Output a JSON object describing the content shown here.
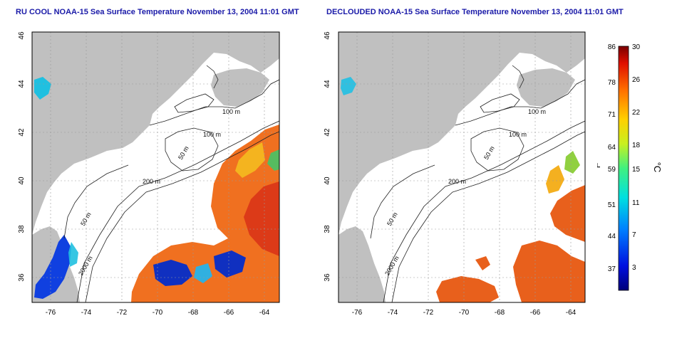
{
  "left_panel": {
    "title": "RU COOL NOAA-15 Sea Surface Temperature November 13, 2004 11:01 GMT",
    "x_ticks": [
      "-76",
      "-74",
      "-72",
      "-70",
      "-68",
      "-66",
      "-64"
    ],
    "y_ticks": [
      "46",
      "44",
      "42",
      "40",
      "38",
      "36"
    ],
    "contour_labels": [
      "100 m",
      "100 m",
      "50 m",
      "200 m",
      "50 m",
      "2000 m"
    ]
  },
  "right_panel": {
    "title": "DECLOUDED NOAA-15 Sea Surface Temperature November 13, 2004 11:01 GMT",
    "x_ticks": [
      "-76",
      "-74",
      "-72",
      "-70",
      "-68",
      "-66",
      "-64"
    ],
    "y_ticks": [
      "46",
      "44",
      "42",
      "40",
      "38",
      "36"
    ],
    "contour_labels": [
      "100 m",
      "100 m",
      "50 m",
      "200 m",
      "50 m",
      "2000 m"
    ]
  },
  "colorbar": {
    "fahrenheit_label": "°F",
    "celsius_label": "°C",
    "fahrenheit_ticks": [
      "86",
      "78",
      "71",
      "64",
      "59",
      "51",
      "44",
      "37"
    ],
    "celsius_ticks": [
      "30",
      "26",
      "22",
      "18",
      "15",
      "11",
      "7",
      "3"
    ]
  },
  "colors": {
    "land": "#c0c0c0",
    "ocean": "#ffffff",
    "title": "#1a1aa8",
    "contour": "#222222",
    "grid": "#9a9a9a"
  },
  "map_extent": {
    "lon_range": [
      -77,
      -63
    ],
    "lat_range": [
      35,
      46
    ]
  }
}
